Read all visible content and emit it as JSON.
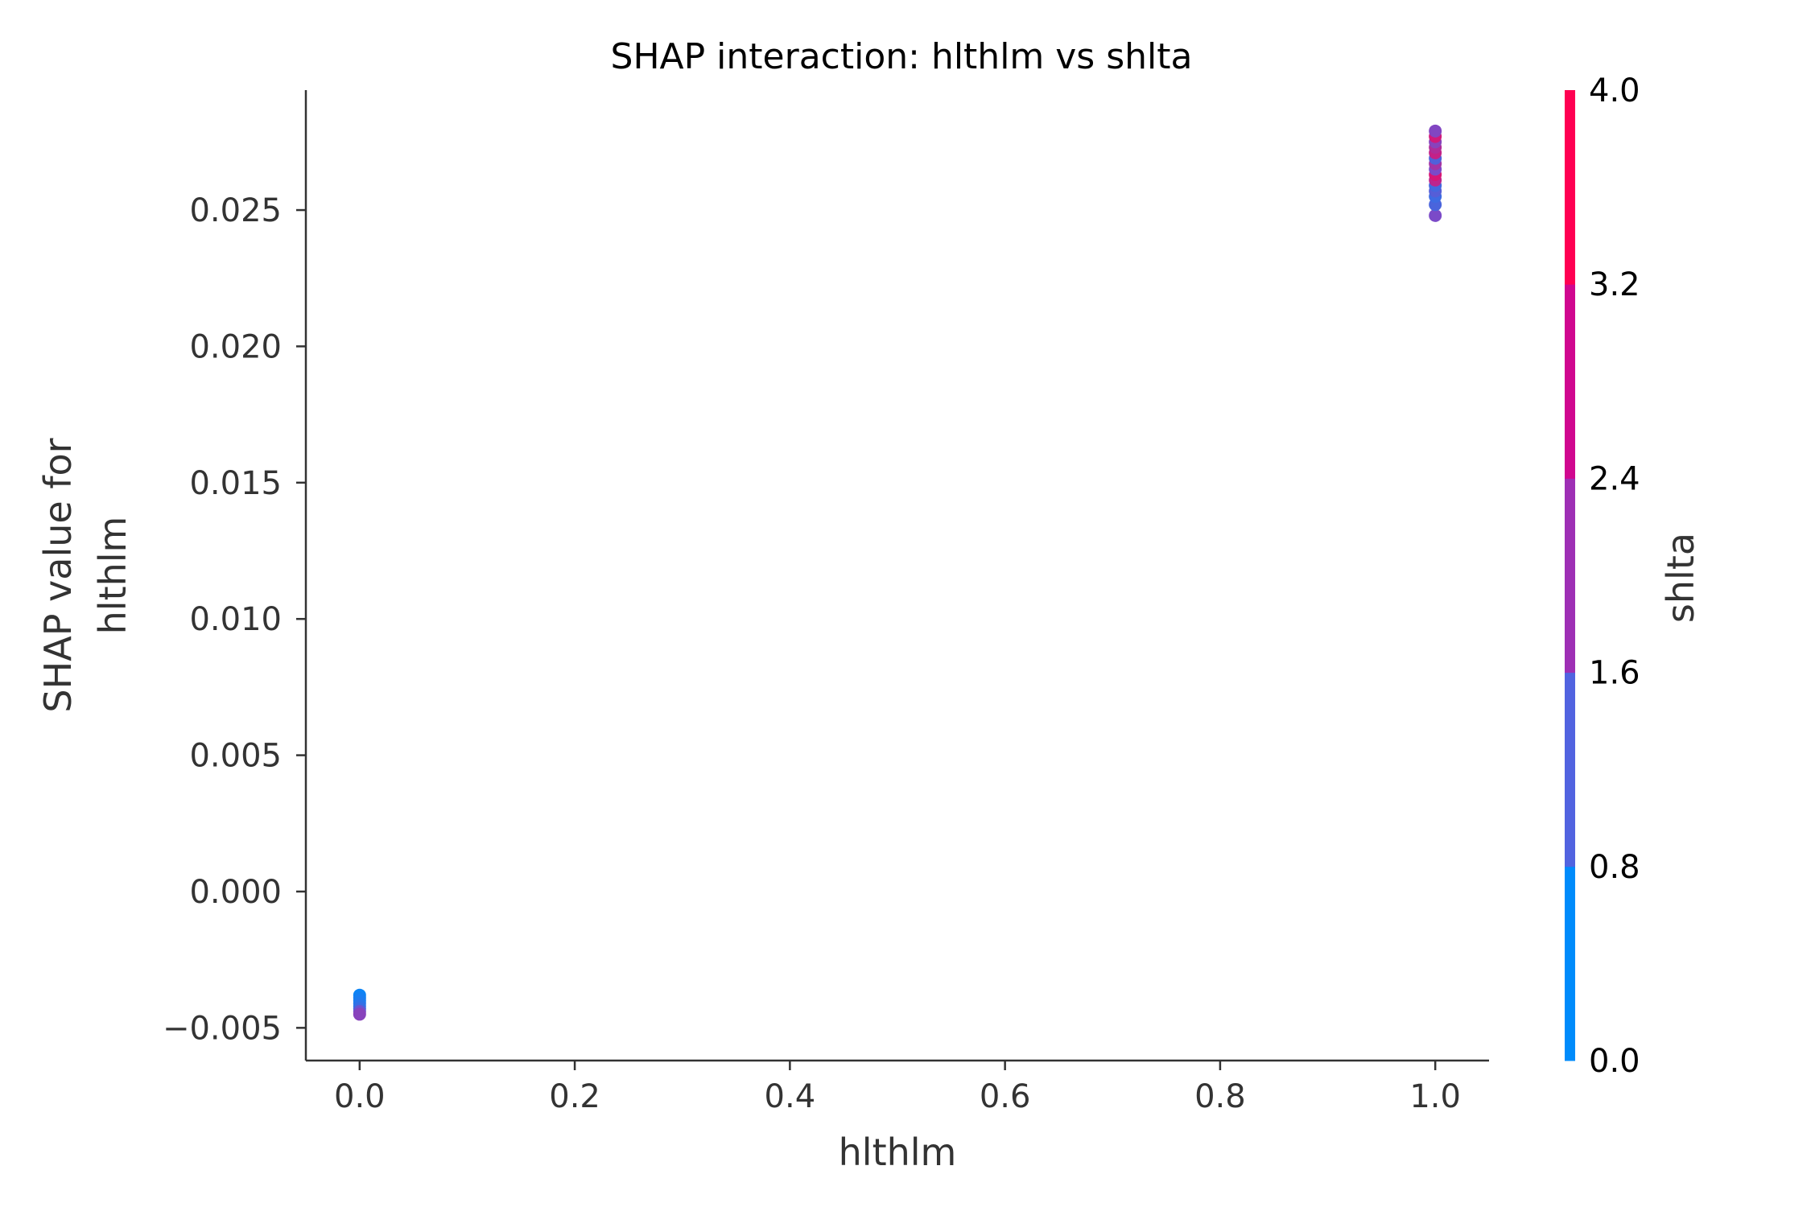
{
  "chart_data": {
    "type": "scatter",
    "title": "SHAP interaction: hlthlm vs shlta",
    "xlabel": "hlthlm",
    "ylabel_lines": [
      "SHAP value for",
      "hlthlm"
    ],
    "xlim": [
      -0.05,
      1.05
    ],
    "ylim": [
      -0.0062,
      0.0294
    ],
    "xticks": [
      0.0,
      0.2,
      0.4,
      0.6,
      0.8,
      1.0
    ],
    "xtick_labels": [
      "0.0",
      "0.2",
      "0.4",
      "0.6",
      "0.8",
      "1.0"
    ],
    "yticks": [
      -0.005,
      0.0,
      0.005,
      0.01,
      0.015,
      0.02,
      0.025
    ],
    "ytick_labels": [
      "−0.005",
      "0.000",
      "0.005",
      "0.010",
      "0.015",
      "0.020",
      "0.025"
    ],
    "grid": false,
    "colorbar": {
      "label": "shlta",
      "range": [
        0.0,
        4.0
      ],
      "ticks": [
        0.0,
        0.8,
        1.6,
        2.4,
        3.2,
        4.0
      ],
      "tick_labels": [
        "0.0",
        "0.8",
        "1.6",
        "2.4",
        "3.2",
        "4.0"
      ],
      "colors": [
        "#008bfb",
        "#5163e0",
        "#9e2fb5",
        "#d0078f",
        "#ff0052"
      ]
    },
    "points": [
      {
        "x": 0.0,
        "y": -0.0038,
        "c": 0.2
      },
      {
        "x": 0.0,
        "y": -0.0039,
        "c": 0.3
      },
      {
        "x": 0.0,
        "y": -0.004,
        "c": 0.4
      },
      {
        "x": 0.0,
        "y": -0.0041,
        "c": 0.5
      },
      {
        "x": 0.0,
        "y": -0.0042,
        "c": 0.7
      },
      {
        "x": 0.0,
        "y": -0.0043,
        "c": 0.9
      },
      {
        "x": 0.0,
        "y": -0.0044,
        "c": 1.7
      },
      {
        "x": 0.0,
        "y": -0.0045,
        "c": 2.2
      },
      {
        "x": 1.0,
        "y": 0.0248,
        "c": 2.0
      },
      {
        "x": 1.0,
        "y": 0.0252,
        "c": 1.2
      },
      {
        "x": 1.0,
        "y": 0.0255,
        "c": 1.0
      },
      {
        "x": 1.0,
        "y": 0.0257,
        "c": 1.4
      },
      {
        "x": 1.0,
        "y": 0.0259,
        "c": 1.1
      },
      {
        "x": 1.0,
        "y": 0.0261,
        "c": 3.0
      },
      {
        "x": 1.0,
        "y": 0.0263,
        "c": 3.4
      },
      {
        "x": 1.0,
        "y": 0.0265,
        "c": 2.0
      },
      {
        "x": 1.0,
        "y": 0.0267,
        "c": 2.6
      },
      {
        "x": 1.0,
        "y": 0.0269,
        "c": 1.3
      },
      {
        "x": 1.0,
        "y": 0.0271,
        "c": 3.1
      },
      {
        "x": 1.0,
        "y": 0.0273,
        "c": 2.8
      },
      {
        "x": 1.0,
        "y": 0.0275,
        "c": 2.2
      },
      {
        "x": 1.0,
        "y": 0.0277,
        "c": 3.3
      },
      {
        "x": 1.0,
        "y": 0.0279,
        "c": 2.1
      }
    ]
  }
}
